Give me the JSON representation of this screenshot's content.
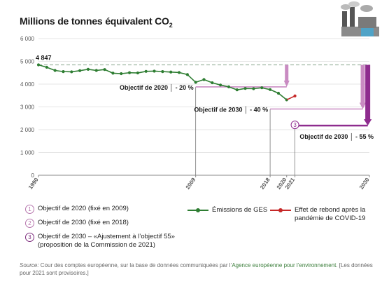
{
  "title": "Millions de tonnes équivalent CO",
  "title_sub": "2",
  "chart_data": {
    "type": "line",
    "x": [
      1990,
      1991,
      1992,
      1993,
      1994,
      1995,
      1996,
      1997,
      1998,
      1999,
      2000,
      2001,
      2002,
      2003,
      2004,
      2005,
      2006,
      2007,
      2008,
      2009,
      2010,
      2011,
      2012,
      2013,
      2014,
      2015,
      2016,
      2017,
      2018,
      2019,
      2020,
      2021
    ],
    "ylim": [
      0,
      6000
    ],
    "xlim": [
      1990,
      2030
    ],
    "yticks": [
      0,
      1000,
      2000,
      3000,
      4000,
      5000,
      6000
    ],
    "ytick_labels": [
      "0",
      "1 000",
      "2 000",
      "3 000",
      "4 000",
      "5 000",
      "6 000"
    ],
    "xticks": [
      1990,
      2009,
      2018,
      2020,
      2021,
      2030
    ],
    "xtick_labels": [
      "1990",
      "2009",
      "2018",
      "2020",
      "2021",
      "2030"
    ],
    "series": [
      {
        "name": "Émissions de GES",
        "color": "#2e7d32",
        "x": [
          1990,
          1991,
          1992,
          1993,
          1994,
          1995,
          1996,
          1997,
          1998,
          1999,
          2000,
          2001,
          2002,
          2003,
          2004,
          2005,
          2006,
          2007,
          2008,
          2009,
          2010,
          2011,
          2012,
          2013,
          2014,
          2015,
          2016,
          2017,
          2018,
          2019,
          2020
        ],
        "values": [
          4847,
          4740,
          4600,
          4550,
          4540,
          4590,
          4650,
          4600,
          4640,
          4480,
          4460,
          4500,
          4490,
          4560,
          4570,
          4550,
          4530,
          4510,
          4420,
          4080,
          4200,
          4060,
          3960,
          3880,
          3750,
          3810,
          3800,
          3840,
          3760,
          3600,
          3310
        ]
      },
      {
        "name": "Effet de rebond après la pandémie de COVID-19",
        "color": "#c62828",
        "x": [
          2020,
          2021
        ],
        "values": [
          3310,
          3480
        ]
      }
    ],
    "start_value_label": "4 847",
    "reference_level": 4847,
    "targets": [
      {
        "id": "1",
        "label": "Objectif de 2020 │ - 20 %",
        "value": 3878,
        "year": 2020
      },
      {
        "id": "2",
        "label": "Objectif de 2030 │ - 40 %",
        "value": 2908,
        "year": 2030
      },
      {
        "id": "3",
        "label": "Objectif de 2030 │ - 55 %",
        "value": 2181,
        "year": 2030
      }
    ]
  },
  "legend": {
    "items": [
      {
        "num": "1",
        "text": "Objectif de 2020 (fixé en 2009)"
      },
      {
        "num": "2",
        "text": "Objectif de 2030 (fixé en 2018)"
      },
      {
        "num": "3",
        "text": "Objectif de 2030 – «Ajustement à l’objectif 55» (proposition de la Commission de 2021)"
      }
    ],
    "series_green": "Émissions de GES",
    "series_red": "Effet de rebond après la pandémie de COVID-19"
  },
  "source": {
    "prefix": "Source:",
    "text": " Cour des comptes européenne, sur la base de données communiquées par l’",
    "agency": "Agence européenne pour l’environnement",
    "suffix": ". [Les données pour 2021 sont provisoires.]"
  },
  "icon": "factory-icon"
}
